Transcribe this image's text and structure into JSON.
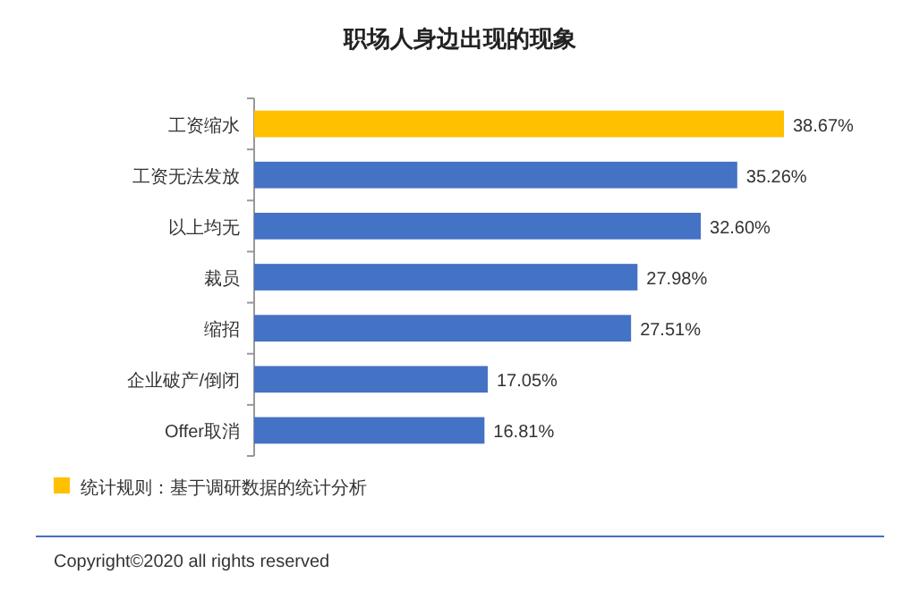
{
  "chart_data": {
    "type": "bar",
    "orientation": "horizontal",
    "title": "职场人身边出现的现象",
    "categories": [
      "工资缩水",
      "工资无法发放",
      "以上均无",
      "裁员",
      "缩招",
      "企业破产/倒闭",
      "Offer取消"
    ],
    "values": [
      38.67,
      35.26,
      32.6,
      27.98,
      27.51,
      17.05,
      16.81
    ],
    "value_labels": [
      "38.67%",
      "35.26%",
      "32.60%",
      "27.98%",
      "27.51%",
      "17.05%",
      "16.81%"
    ],
    "colors": [
      "#ffc000",
      "#4472c4",
      "#4472c4",
      "#4472c4",
      "#4472c4",
      "#4472c4",
      "#4472c4"
    ],
    "annotations": [
      "统计规则：基于调研数据的统计分析",
      "Copyright©2020 all rights reserved"
    ]
  }
}
